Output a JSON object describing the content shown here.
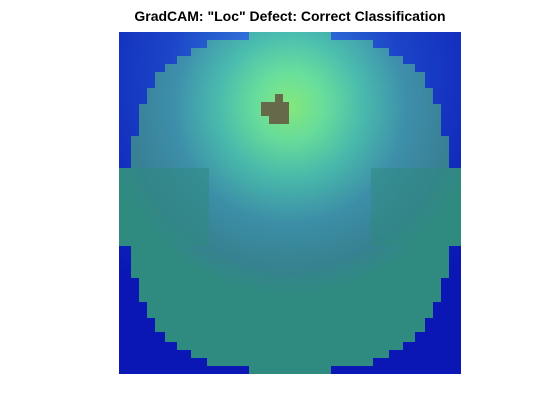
{
  "figure": {
    "title": "GradCAM: \"Loc\" Defect: Correct Classification"
  },
  "colors": {
    "background_blue": "#0a17b4",
    "wafer_teal": "#2f8a80",
    "hotspot_green": "#8ff27a",
    "defect_patch": "#666a4a"
  }
}
